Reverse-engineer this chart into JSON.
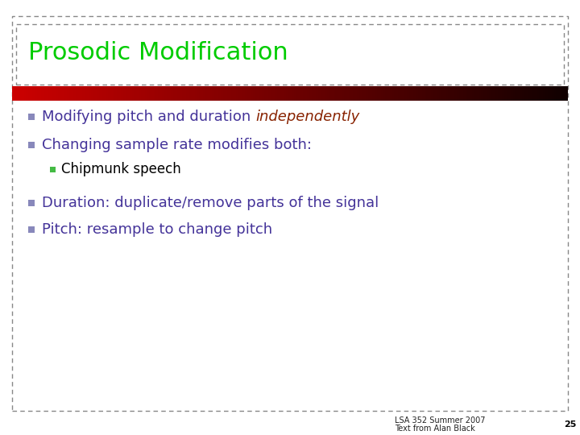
{
  "title": "Prosodic Modification",
  "title_color": "#00cc00",
  "title_fontsize": 22,
  "background_color": "#ffffff",
  "slide_border_color": "#888888",
  "red_bar_color_left": "#cc0000",
  "red_bar_color_right": "#110000",
  "footer_bg_color": "#66cc44",
  "footer_text1": "LSA 352 Summer 2007",
  "footer_text2": "Text from Alan Black",
  "footer_page": "25",
  "bullet_square_color": "#8888bb",
  "sub_bullet_square_color": "#44bb44",
  "bullet_items": [
    {
      "text_parts": [
        {
          "text": "Modifying pitch and duration ",
          "style": "normal",
          "color": "#443399"
        },
        {
          "text": "independently",
          "style": "italic",
          "color": "#882200"
        }
      ],
      "level": 0
    },
    {
      "text_parts": [
        {
          "text": "Changing sample rate modifies both:",
          "style": "normal",
          "color": "#443399"
        }
      ],
      "level": 0
    },
    {
      "text_parts": [
        {
          "text": "Chipmunk speech",
          "style": "normal",
          "color": "#000000"
        }
      ],
      "level": 1
    },
    {
      "text_parts": [
        {
          "text": "Duration: duplicate/remove parts of the signal",
          "style": "normal",
          "color": "#443399"
        }
      ],
      "level": 0
    },
    {
      "text_parts": [
        {
          "text": "Pitch: resample to change pitch",
          "style": "normal",
          "color": "#443399"
        }
      ],
      "level": 0
    }
  ],
  "bullet_fontsize": 13,
  "sub_bullet_fontsize": 12
}
